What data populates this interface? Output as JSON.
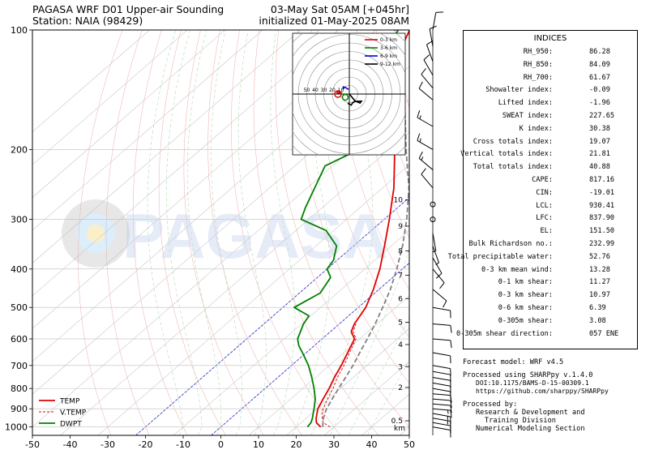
{
  "header": {
    "title_line1": "PAGASA WRF D01 Upper-air Sounding",
    "title_line2": "Station: NAIA (98429)",
    "valid_line1": "03-May Sat 05AM [+045hr]",
    "valid_line2": "initialized 01-May-2025 08AM"
  },
  "watermark": "PAGASA",
  "colors": {
    "temp": "#e00000",
    "vtemp": "#e00000",
    "dwpt": "#008000",
    "parcel": "#808080",
    "hodo_0_3": "#e00000",
    "hodo_3_6": "#008000",
    "hodo_6_9": "#0000cc",
    "hodo_9_12": "#000000"
  },
  "chart_data": {
    "type": "line",
    "x_ticks": [
      -50,
      -40,
      -30,
      -20,
      -10,
      0,
      10,
      20,
      30,
      40,
      50
    ],
    "y_ticks": [
      100,
      200,
      300,
      400,
      500,
      600,
      700,
      800,
      900,
      1000
    ],
    "xlim": [
      -50,
      50
    ],
    "ylim": [
      1050,
      100
    ],
    "y_scale": "log",
    "grid": true,
    "legend_position": "bottom-left",
    "height_axis": {
      "unit": "km",
      "ticks": [
        {
          "label": "0.5",
          "p": 965
        },
        {
          "label": "2",
          "p": 795
        },
        {
          "label": "3",
          "p": 705
        },
        {
          "label": "4",
          "p": 620
        },
        {
          "label": "5",
          "p": 545
        },
        {
          "label": "6",
          "p": 475
        },
        {
          "label": "7",
          "p": 415
        },
        {
          "label": "8",
          "p": 360
        },
        {
          "label": "9",
          "p": 312
        },
        {
          "label": "10",
          "p": 268
        }
      ]
    },
    "series": [
      {
        "name": "TEMP",
        "points": [
          {
            "p": 1000,
            "t": 26.5
          },
          {
            "p": 975,
            "t": 24.0
          },
          {
            "p": 950,
            "t": 22.6
          },
          {
            "p": 925,
            "t": 21.4
          },
          {
            "p": 900,
            "t": 20.2
          },
          {
            "p": 850,
            "t": 18.6
          },
          {
            "p": 800,
            "t": 17.0
          },
          {
            "p": 750,
            "t": 15.0
          },
          {
            "p": 700,
            "t": 13.2
          },
          {
            "p": 650,
            "t": 11.0
          },
          {
            "p": 600,
            "t": 8.6
          },
          {
            "p": 575,
            "t": 5.5
          },
          {
            "p": 550,
            "t": 4.0
          },
          {
            "p": 500,
            "t": 2.0
          },
          {
            "p": 450,
            "t": -1.5
          },
          {
            "p": 400,
            "t": -6.0
          },
          {
            "p": 350,
            "t": -11.8
          },
          {
            "p": 300,
            "t": -18.6
          },
          {
            "p": 250,
            "t": -27.0
          },
          {
            "p": 200,
            "t": -38.5
          },
          {
            "p": 175,
            "t": -45.0
          },
          {
            "p": 150,
            "t": -52.5
          },
          {
            "p": 125,
            "t": -62.0
          },
          {
            "p": 110,
            "t": -68.0
          },
          {
            "p": 100,
            "t": -71.0
          }
        ]
      },
      {
        "name": "V.TEMP",
        "points": [
          {
            "p": 1000,
            "t": 29.0
          },
          {
            "p": 975,
            "t": 25.8
          },
          {
            "p": 950,
            "t": 24.2
          },
          {
            "p": 925,
            "t": 22.8
          },
          {
            "p": 900,
            "t": 21.6
          },
          {
            "p": 850,
            "t": 19.8
          },
          {
            "p": 800,
            "t": 18.0
          },
          {
            "p": 750,
            "t": 15.8
          },
          {
            "p": 700,
            "t": 13.9
          },
          {
            "p": 650,
            "t": 11.5
          },
          {
            "p": 600,
            "t": 9.0
          },
          {
            "p": 575,
            "t": 6.0
          },
          {
            "p": 550,
            "t": 4.4
          }
        ]
      },
      {
        "name": "DWPT",
        "points": [
          {
            "p": 1000,
            "t": 23.0
          },
          {
            "p": 975,
            "t": 22.6
          },
          {
            "p": 950,
            "t": 21.6
          },
          {
            "p": 925,
            "t": 20.4
          },
          {
            "p": 900,
            "t": 19.2
          },
          {
            "p": 850,
            "t": 16.5
          },
          {
            "p": 800,
            "t": 13.0
          },
          {
            "p": 750,
            "t": 9.0
          },
          {
            "p": 700,
            "t": 4.5
          },
          {
            "p": 650,
            "t": -1.0
          },
          {
            "p": 625,
            "t": -4.0
          },
          {
            "p": 600,
            "t": -6.5
          },
          {
            "p": 550,
            "t": -9.5
          },
          {
            "p": 525,
            "t": -10.5
          },
          {
            "p": 500,
            "t": -17.0
          },
          {
            "p": 460,
            "t": -14.5
          },
          {
            "p": 420,
            "t": -16.5
          },
          {
            "p": 400,
            "t": -20.0
          },
          {
            "p": 380,
            "t": -21.0
          },
          {
            "p": 350,
            "t": -24.5
          },
          {
            "p": 320,
            "t": -32.0
          },
          {
            "p": 300,
            "t": -42.0
          },
          {
            "p": 280,
            "t": -44.5
          },
          {
            "p": 250,
            "t": -48.0
          },
          {
            "p": 220,
            "t": -52.0
          },
          {
            "p": 200,
            "t": -48.0
          },
          {
            "p": 185,
            "t": -49.0
          },
          {
            "p": 165,
            "t": -53.0
          },
          {
            "p": 150,
            "t": -58.0
          },
          {
            "p": 135,
            "t": -65.0
          },
          {
            "p": 120,
            "t": -70.0
          },
          {
            "p": 110,
            "t": -72.0
          },
          {
            "p": 100,
            "t": -74.0
          }
        ]
      },
      {
        "name": "",
        "points": [
          {
            "p": 1000,
            "t": 27.0
          },
          {
            "p": 950,
            "t": 24.5
          },
          {
            "p": 900,
            "t": 22.5
          },
          {
            "p": 850,
            "t": 21.0
          },
          {
            "p": 800,
            "t": 19.5
          },
          {
            "p": 750,
            "t": 18.0
          },
          {
            "p": 700,
            "t": 16.3
          },
          {
            "p": 650,
            "t": 14.2
          },
          {
            "p": 600,
            "t": 12.0
          },
          {
            "p": 550,
            "t": 9.5
          },
          {
            "p": 500,
            "t": 6.5
          },
          {
            "p": 450,
            "t": 3.0
          },
          {
            "p": 400,
            "t": -1.5
          },
          {
            "p": 350,
            "t": -7.0
          },
          {
            "p": 300,
            "t": -14.0
          },
          {
            "p": 250,
            "t": -23.0
          },
          {
            "p": 200,
            "t": -35.5
          },
          {
            "p": 150,
            "t": -51.0
          },
          {
            "p": 125,
            "t": -61.0
          },
          {
            "p": 100,
            "t": -75.0
          }
        ]
      }
    ],
    "hodograph": {
      "ring_labels": [
        "50",
        "40",
        "30",
        "20",
        "10"
      ],
      "legend": [
        "0-3 km",
        "3-6 km",
        "6-9 km",
        "9-12 km"
      ]
    },
    "wind_barbs": [
      {
        "p": 1000,
        "spd": 12,
        "dir": 100
      },
      {
        "p": 975,
        "spd": 12,
        "dir": 100
      },
      {
        "p": 950,
        "spd": 13,
        "dir": 100
      },
      {
        "p": 925,
        "spd": 13,
        "dir": 100
      },
      {
        "p": 900,
        "spd": 13,
        "dir": 95
      },
      {
        "p": 875,
        "spd": 12,
        "dir": 95
      },
      {
        "p": 850,
        "spd": 12,
        "dir": 95
      },
      {
        "p": 825,
        "spd": 11,
        "dir": 95
      },
      {
        "p": 800,
        "spd": 11,
        "dir": 100
      },
      {
        "p": 775,
        "spd": 10,
        "dir": 100
      },
      {
        "p": 750,
        "spd": 10,
        "dir": 100
      },
      {
        "p": 725,
        "spd": 10,
        "dir": 100
      },
      {
        "p": 700,
        "spd": 10,
        "dir": 100
      },
      {
        "p": 650,
        "spd": 9,
        "dir": 100
      },
      {
        "p": 600,
        "spd": 10,
        "dir": 95
      },
      {
        "p": 550,
        "spd": 10,
        "dir": 95
      },
      {
        "p": 500,
        "spd": 8,
        "dir": 100
      },
      {
        "p": 450,
        "spd": 8,
        "dir": 130
      },
      {
        "p": 400,
        "spd": 10,
        "dir": 140
      },
      {
        "p": 375,
        "spd": 8,
        "dir": 150
      },
      {
        "p": 350,
        "spd": 6,
        "dir": 160
      },
      {
        "p": 325,
        "spd": 5,
        "dir": 170
      },
      {
        "p": 300,
        "spd": 0,
        "dir": 0
      },
      {
        "p": 275,
        "spd": 0,
        "dir": 0
      },
      {
        "p": 250,
        "spd": 10,
        "dir": 320
      },
      {
        "p": 225,
        "spd": 15,
        "dir": 310
      },
      {
        "p": 200,
        "spd": 15,
        "dir": 300
      },
      {
        "p": 175,
        "spd": 15,
        "dir": 300
      },
      {
        "p": 150,
        "spd": 12,
        "dir": 310
      },
      {
        "p": 140,
        "spd": 10,
        "dir": 320
      },
      {
        "p": 130,
        "spd": 10,
        "dir": 330
      },
      {
        "p": 120,
        "spd": 10,
        "dir": 340
      },
      {
        "p": 110,
        "spd": 12,
        "dir": 350
      },
      {
        "p": 100,
        "spd": 10,
        "dir": 10
      }
    ]
  },
  "indices": {
    "title": "INDICES",
    "rows": [
      {
        "label": "RH_950:",
        "value": "86.28"
      },
      {
        "label": "RH_850:",
        "value": "84.09"
      },
      {
        "label": "RH_700:",
        "value": "61.67"
      },
      {
        "label": "Showalter index:",
        "value": "-0.09"
      },
      {
        "label": "Lifted index:",
        "value": "-1.96"
      },
      {
        "label": "SWEAT index:",
        "value": "227.65"
      },
      {
        "label": "K index:",
        "value": "30.38"
      },
      {
        "label": "Cross totals index:",
        "value": "19.07"
      },
      {
        "label": "Vertical totals index:",
        "value": "21.81"
      },
      {
        "label": "Total totals index:",
        "value": "40.88"
      },
      {
        "label": "CAPE:",
        "value": "817.16"
      },
      {
        "label": "CIN:",
        "value": "-19.01"
      },
      {
        "label": "LCL:",
        "value": "930.41"
      },
      {
        "label": "LFC:",
        "value": "837.90"
      },
      {
        "label": "EL:",
        "value": "151.50"
      },
      {
        "label": "Bulk Richardson no.:",
        "value": "232.99"
      },
      {
        "label": "Total precipitable water:",
        "value": "52.76"
      },
      {
        "label": "0-3 km mean wind:",
        "value": "13.28"
      },
      {
        "label": "0-1 km shear:",
        "value": "11.27"
      },
      {
        "label": "0-3 km shear:",
        "value": "10.97"
      },
      {
        "label": "0-6 km shear:",
        "value": "6.39"
      },
      {
        "label": "0-305m shear:",
        "value": "3.08"
      },
      {
        "label": "0-305m shear direction:",
        "value": "057 ENE"
      }
    ]
  },
  "info": {
    "model": "Forecast model: WRF v4.5",
    "processed_using": "Processed using SHARPpy v.1.4.0",
    "doi": "DOI:10.1175/BAMS-D-15-00309.1",
    "url": "https://github.com/sharppy/SHARPpy",
    "processed_by": "Processed by:",
    "org_line1": "Research & Development and",
    "org_line2": "Training Division",
    "org_line3": "Numerical Modeling Section"
  }
}
